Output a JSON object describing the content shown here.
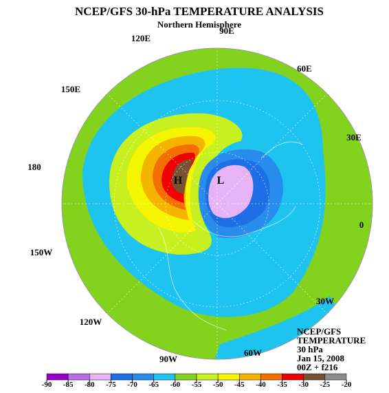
{
  "header": {
    "title": "NCEP/GFS 30-hPa TEMPERATURE ANALYSIS",
    "subtitle": "Northern Hemisphere"
  },
  "longitude_labels": [
    "90E",
    "60E",
    "30E",
    "0",
    "30W",
    "60W",
    "90W",
    "120W",
    "150W",
    "180",
    "150E",
    "120E"
  ],
  "centers": [
    "H",
    "L"
  ],
  "info": [
    "NCEP/GFS",
    "TEMPERATURE",
    "30 hPa",
    "Jan 15, 2008",
    "00Z + f216"
  ],
  "colorbar": {
    "ticks": [
      -90,
      -85,
      -80,
      -75,
      -70,
      -65,
      -60,
      -55,
      -50,
      -45,
      -40,
      -35,
      -30,
      -25,
      -20
    ],
    "colors": [
      "#9600c8",
      "#b46ee6",
      "#e6b4f5",
      "#1e6ee6",
      "#288ced",
      "#1ec3f0",
      "#82d21e",
      "#c8f020",
      "#f5f500",
      "#f5b400",
      "#f56e00",
      "#f00000",
      "#785032",
      "#8c8c8c"
    ]
  }
}
